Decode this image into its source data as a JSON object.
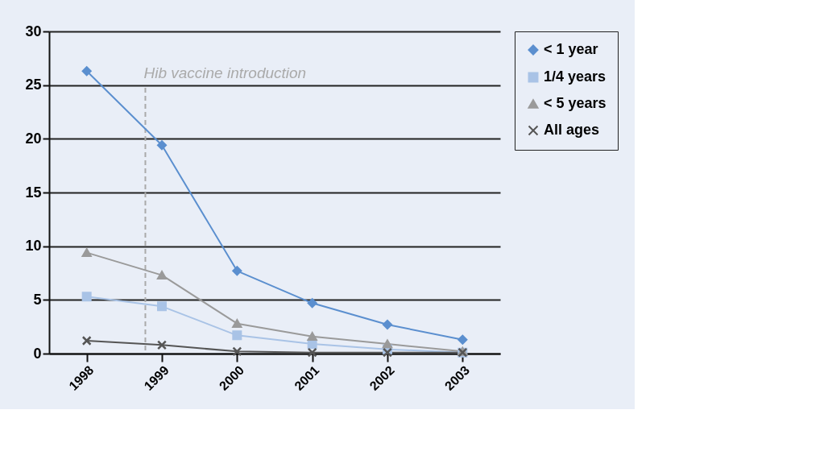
{
  "chart_data": {
    "type": "line",
    "x": [
      1998,
      1999,
      2000,
      2001,
      2002,
      2003
    ],
    "xlim": [
      1997.5,
      2003.5
    ],
    "xticks": [
      1998,
      1999,
      2000,
      2001,
      2002,
      2003
    ],
    "ylim": [
      0,
      30
    ],
    "yticks": [
      0,
      5,
      10,
      15,
      20,
      25,
      30
    ],
    "grid": "y",
    "legend": "top right",
    "line_style": "solid",
    "series": [
      {
        "name": "< 1 year",
        "color": "#5b8fcf",
        "marker": "diamond",
        "values": [
          26.3,
          19.4,
          7.7,
          4.7,
          2.7,
          1.3
        ]
      },
      {
        "name": "1/4 years",
        "color": "#a9c3e6",
        "marker": "square",
        "values": [
          5.3,
          4.4,
          1.7,
          0.9,
          0.4,
          0.1
        ]
      },
      {
        "name": "< 5 years",
        "color": "#9a9a9a",
        "marker": "triangle",
        "values": [
          9.4,
          7.3,
          2.8,
          1.6,
          0.9,
          0.2
        ]
      },
      {
        "name": "All ages",
        "color": "#555555",
        "marker": "cross",
        "values": [
          1.2,
          0.8,
          0.2,
          0.1,
          0.1,
          0.1
        ]
      }
    ],
    "ref_lines": [
      {
        "axis": "x",
        "value": 1998.78,
        "label": "Hib vaccine introduction",
        "color": "#aaaaaa",
        "line_style": "dashed"
      }
    ]
  }
}
